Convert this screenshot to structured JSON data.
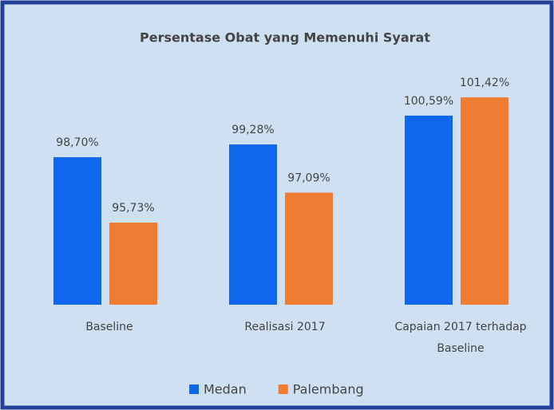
{
  "chart_data": {
    "type": "bar",
    "title": "Persentase Obat yang Memenuhi Syarat",
    "categories": [
      "Baseline",
      "Realisasi 2017",
      "Capaian 2017 terhadap Baseline"
    ],
    "series": [
      {
        "name": "Medan",
        "color": "#1166ee",
        "values": [
          98.7,
          99.28,
          100.59
        ],
        "value_labels": [
          "98,70%",
          "99,28%",
          "100,59%"
        ]
      },
      {
        "name": "Palembang",
        "color": "#ee7d33",
        "values": [
          95.73,
          97.09,
          101.42
        ],
        "value_labels": [
          "95,73%",
          "97,09%",
          "101,42%"
        ]
      }
    ],
    "ylim": [
      92,
      102
    ]
  }
}
